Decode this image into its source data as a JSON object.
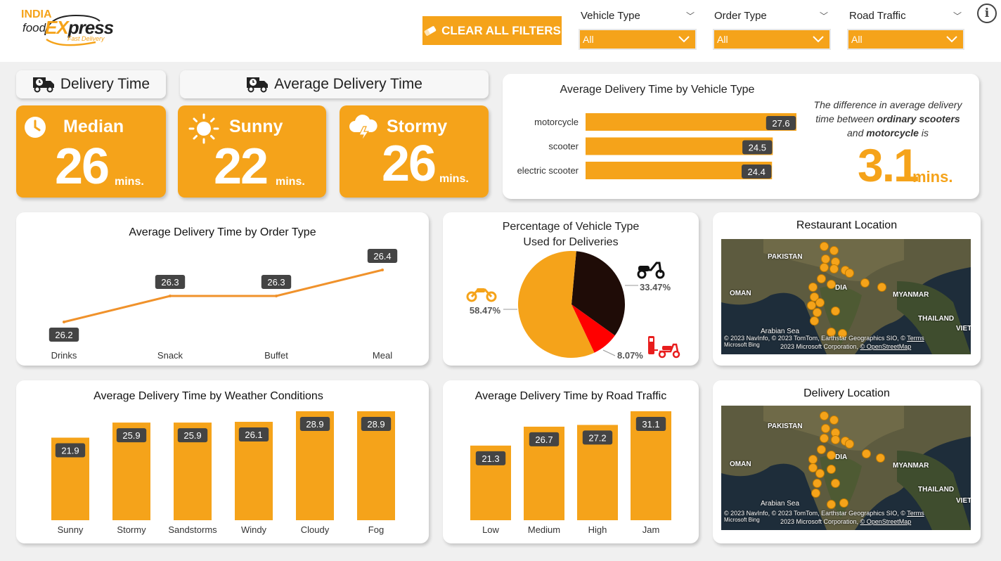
{
  "logo": {
    "line1": "INDIA",
    "food": "food",
    "ex": "EX",
    "press": "press",
    "tagline": "Fast Delivery"
  },
  "header": {
    "clear_label": "CLEAR ALL FILTERS",
    "filters": [
      {
        "label": "Vehicle Type",
        "value": "All"
      },
      {
        "label": "Order Type",
        "value": "All"
      },
      {
        "label": "Road Traffic",
        "value": "All"
      }
    ],
    "info": "i"
  },
  "kpi_headers": {
    "left": "Delivery Time",
    "right": "Average Delivery Time"
  },
  "kpis": [
    {
      "title": "Median",
      "value": "26",
      "unit": "mins.",
      "icon": "clock-icon"
    },
    {
      "title": "Sunny",
      "value": "22",
      "unit": "mins.",
      "icon": "sun-icon"
    },
    {
      "title": "Stormy",
      "value": "26",
      "unit": "mins.",
      "icon": "storm-icon"
    }
  ],
  "vehicle_note": {
    "line1": "The difference in average delivery",
    "line2_pre": "time between ",
    "line2_em": "ordinary scooters",
    "line3_pre": "and ",
    "line3_em": "motorcycle",
    "line3_post": " is",
    "value": "3.1",
    "unit": "mins."
  },
  "pie_labels": {
    "motorcycle": "58.47%",
    "scooter": "33.47%",
    "electric": "8.07%"
  },
  "maps": [
    {
      "title": "Restaurant Location",
      "labels": {
        "pakistan": "PAKISTAN",
        "oman": "OMAN",
        "india": "DIA",
        "myanmar": "MYANMAR",
        "thailand": "THAILAND",
        "viet": "VIET",
        "sea": "Arabian Sea"
      },
      "credit1": "© 2023 NavInfo, © 2023 TomTom, Earthstar Geographics SIO, ©",
      "terms": "Terms",
      "bing": "Microsoft Bing",
      "credit2": "2023 Microsoft Corporation,",
      "osm": "© OpenStreetMap"
    },
    {
      "title": "Delivery Location",
      "labels": {
        "pakistan": "PAKISTAN",
        "oman": "OMAN",
        "india": "DIA",
        "myanmar": "MYANMAR",
        "thailand": "THAILAND",
        "viet": "VIET",
        "sea": "Arabian Sea"
      },
      "credit1": "© 2023 NavInfo, © 2023 TomTom, Earthstar Geographics SIO, ©",
      "terms": "Terms",
      "bing": "Microsoft Bing",
      "credit2": "2023 Microsoft Corporation,",
      "osm": "© OpenStreetMap"
    }
  ],
  "chart_data": [
    {
      "type": "bar",
      "orientation": "horizontal",
      "title": "Average Delivery Time by Vehicle Type",
      "categories": [
        "motorcycle",
        "scooter",
        "electric scooter"
      ],
      "values": [
        27.6,
        24.5,
        24.4
      ],
      "color": "#f5a31a"
    },
    {
      "type": "line",
      "title": "Average Delivery Time by Order Type",
      "categories": [
        "Drinks",
        "Snack",
        "Buffet",
        "Meal"
      ],
      "values": [
        26.2,
        26.3,
        26.3,
        26.4
      ],
      "color": "#f0922b"
    },
    {
      "type": "pie",
      "title": "Percentage of Vehicle Type Used for Deliveries",
      "title_line1": "Percentage of Vehicle Type",
      "title_line2": "Used for Deliveries",
      "categories": [
        "motorcycle",
        "scooter",
        "electric scooter"
      ],
      "values": [
        58.47,
        33.47,
        8.07
      ],
      "colors": [
        "#f5a31a",
        "#1f0c07",
        "#ff0000"
      ]
    },
    {
      "type": "bar",
      "title": "Average Delivery Time by Weather Conditions",
      "categories": [
        "Sunny",
        "Stormy",
        "Sandstorms",
        "Windy",
        "Cloudy",
        "Fog"
      ],
      "values": [
        21.9,
        25.9,
        25.9,
        26.1,
        28.9,
        28.9
      ],
      "color": "#f5a31a"
    },
    {
      "type": "bar",
      "title": "Average Delivery Time by Road Traffic",
      "categories": [
        "Low",
        "Medium",
        "High",
        "Jam"
      ],
      "values": [
        21.3,
        26.7,
        27.2,
        31.1
      ],
      "color": "#f5a31a"
    }
  ]
}
